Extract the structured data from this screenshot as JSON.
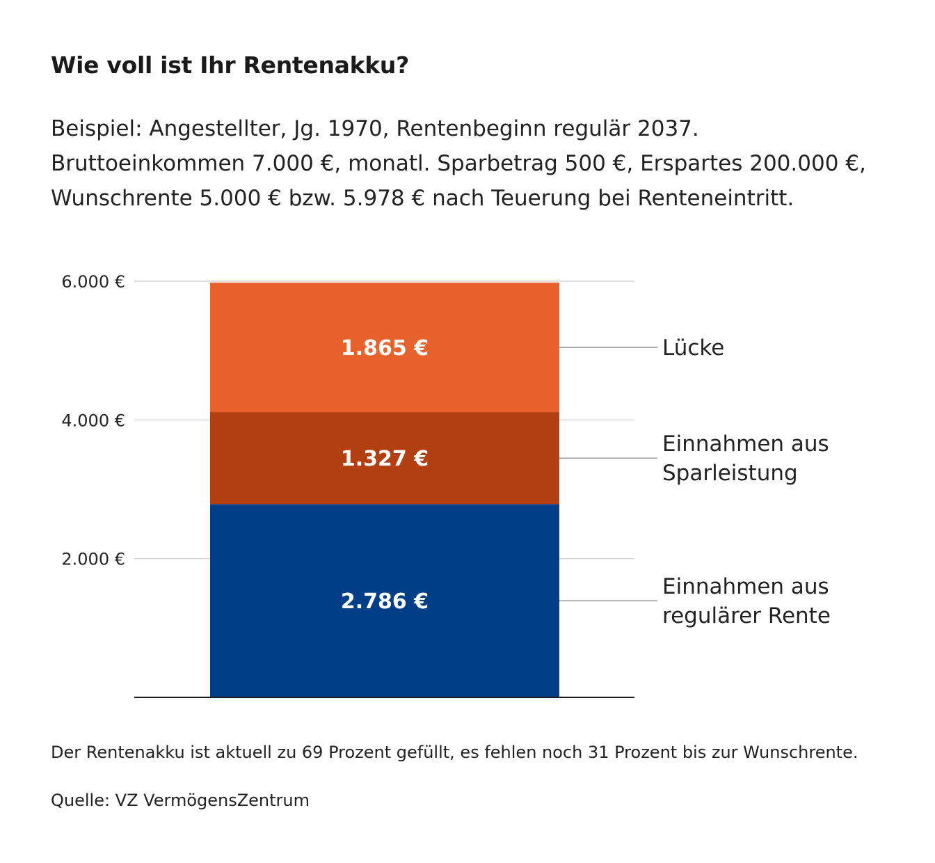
{
  "title": "Wie voll ist Ihr Rentenakku?",
  "subtitle": "Beispiel: Angestellter, Jg. 1970, Rentenbeginn regulär 2037. Bruttoeinkommen 7.000 €, monatl. Sparbetrag 500 €, Erspartes 200.000 €, Wunschrente 5.000 € bzw. 5.978 € nach Teuerung bei Renteneintritt.",
  "footnote": "Der Rentenakku ist aktuell zu 69 Prozent gefüllt, es fehlen noch 31 Prozent bis zur Wunschrente.",
  "source": "Quelle: VZ VermögensZentrum",
  "chart_data": {
    "type": "bar",
    "stacked": true,
    "categories": [
      ""
    ],
    "ylim": [
      0,
      6000
    ],
    "yticks": [
      {
        "value": 2000,
        "label": "2.000 €"
      },
      {
        "value": 4000,
        "label": "4.000 €"
      },
      {
        "value": 6000,
        "label": "6.000 €"
      }
    ],
    "grid": true,
    "series": [
      {
        "name": [
          "Einnahmen aus",
          "regulärer Rente"
        ],
        "value": 2786,
        "label": "2.786 €",
        "color": "#003f87"
      },
      {
        "name": [
          "Einnahmen aus",
          "Sparleistung"
        ],
        "value": 1327,
        "label": "1.327 €",
        "color": "#b24013"
      },
      {
        "name": [
          "Lücke"
        ],
        "value": 1865,
        "label": "1.865 €",
        "color": "#e8622c"
      }
    ],
    "colors": {
      "grid": "#d6d6d6",
      "axis": "#1a1a1a",
      "leader": "#9a9a9a"
    }
  }
}
